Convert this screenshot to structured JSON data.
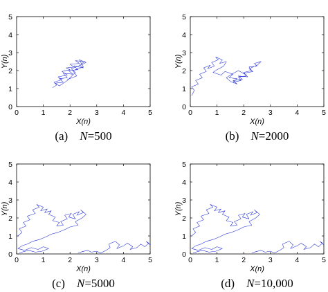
{
  "colors": {
    "walk": "#1f2bd6",
    "axes": "#000000"
  },
  "chart_data": [
    {
      "type": "line",
      "panel_label": "(a)",
      "n_label": "N",
      "n_value": "=500",
      "xlabel": "X(n)",
      "ylabel": "Y(n)",
      "xlim": [
        0,
        5
      ],
      "ylim": [
        0,
        5
      ],
      "xticks": [
        "0",
        "1",
        "2",
        "3",
        "4",
        "5"
      ],
      "yticks": [
        "0",
        "1",
        "2",
        "3",
        "4",
        "5"
      ],
      "grid": false,
      "series": [
        {
          "x": [
            1.35,
            1.5,
            1.4,
            1.7,
            1.55,
            1.9,
            1.7,
            2.0,
            1.85,
            2.15,
            2.0,
            2.35,
            2.2,
            2.55,
            2.35,
            2.5,
            2.15,
            2.3,
            1.95,
            2.1,
            1.75,
            1.9,
            1.6,
            1.75,
            1.45,
            1.6,
            1.9,
            2.2,
            2.05,
            2.4,
            2.6,
            2.35,
            2.5,
            2.1,
            2.25,
            1.9
          ],
          "y": [
            1.05,
            1.2,
            1.35,
            1.5,
            1.65,
            1.75,
            1.95,
            2.05,
            2.15,
            2.2,
            2.35,
            2.4,
            2.55,
            2.5,
            2.3,
            2.15,
            2.25,
            2.05,
            2.0,
            1.8,
            1.85,
            1.6,
            1.55,
            1.35,
            1.3,
            1.15,
            1.45,
            1.9,
            2.1,
            2.3,
            2.45,
            2.6,
            2.2,
            2.0,
            1.7,
            1.5
          ]
        }
      ]
    },
    {
      "type": "line",
      "panel_label": "(b)",
      "n_label": "N",
      "n_value": "=2000",
      "xlabel": "X(n)",
      "ylabel": "Y(n)",
      "xlim": [
        0,
        5
      ],
      "ylim": [
        0,
        5
      ],
      "xticks": [
        "0",
        "1",
        "2",
        "3",
        "4",
        "5"
      ],
      "yticks": [
        "0",
        "1",
        "2",
        "3",
        "4",
        "5"
      ],
      "grid": false,
      "series": [
        {
          "x": [
            0.05,
            0.15,
            0.05,
            0.3,
            0.2,
            0.45,
            0.35,
            0.6,
            0.5,
            0.75,
            0.65,
            0.9,
            0.8,
            1.05,
            0.95,
            1.2,
            1.1,
            1.35,
            1.25,
            1.0,
            0.85,
            1.15,
            1.3,
            1.6,
            1.45,
            1.75,
            1.6,
            1.9,
            1.8,
            2.1,
            2.0,
            2.3,
            2.2,
            2.5,
            2.4,
            2.65,
            2.5,
            2.2,
            2.35,
            2.0,
            2.15,
            1.8,
            1.95,
            1.6,
            1.75,
            1.5,
            1.35,
            1.55,
            1.8,
            2.1
          ],
          "y": [
            0.6,
            0.9,
            1.1,
            1.25,
            1.45,
            1.6,
            1.8,
            1.95,
            2.15,
            2.3,
            2.1,
            2.25,
            2.45,
            2.6,
            2.75,
            2.6,
            2.4,
            2.5,
            2.25,
            2.05,
            1.9,
            1.75,
            1.95,
            1.8,
            1.6,
            1.55,
            1.35,
            1.45,
            1.65,
            1.7,
            1.9,
            2.0,
            2.2,
            2.25,
            2.4,
            2.5,
            2.3,
            2.1,
            1.95,
            1.85,
            1.65,
            1.7,
            1.5,
            1.45,
            1.25,
            1.4,
            1.6,
            1.8,
            2.0,
            1.75
          ]
        }
      ]
    },
    {
      "type": "line",
      "panel_label": "(c)",
      "n_label": "N",
      "n_value": "=5000",
      "xlabel": "X(n)",
      "ylabel": "Y(n)",
      "xlim": [
        0,
        5
      ],
      "ylim": [
        0,
        5
      ],
      "xticks": [
        "0",
        "1",
        "2",
        "3",
        "4",
        "5"
      ],
      "yticks": [
        "0",
        "1",
        "2",
        "3",
        "4",
        "5"
      ],
      "grid": false,
      "series": [
        {
          "x": [
            0.05,
            0.2,
            0.1,
            0.35,
            0.25,
            0.5,
            0.4,
            0.7,
            0.6,
            0.85,
            0.75,
            1.0,
            0.9,
            1.15,
            1.05,
            1.3,
            1.2,
            1.45,
            1.35,
            1.6,
            1.5,
            1.75,
            1.65,
            1.9,
            1.8,
            2.05,
            1.95,
            2.2,
            2.1,
            2.35,
            2.25,
            2.5,
            2.4,
            2.6,
            2.45,
            2.2,
            2.3,
            2.0,
            1.8,
            1.55,
            1.3,
            1.1,
            0.85,
            0.6,
            0.4,
            0.2,
            0.05,
            0.3,
            0.55,
            0.8,
            1.0,
            1.2,
            0.95,
            0.7,
            0.45,
            0.2,
            0.1
          ],
          "y": [
            1.0,
            1.2,
            1.4,
            1.55,
            1.75,
            1.9,
            2.1,
            2.25,
            2.45,
            2.6,
            2.75,
            2.6,
            2.4,
            2.5,
            2.3,
            2.4,
            2.2,
            2.05,
            1.85,
            1.75,
            1.55,
            1.6,
            1.8,
            1.95,
            2.15,
            2.25,
            2.05,
            1.95,
            2.2,
            2.35,
            2.15,
            2.3,
            2.45,
            2.2,
            2.0,
            1.8,
            1.6,
            1.5,
            1.35,
            1.2,
            1.1,
            0.95,
            0.8,
            0.7,
            0.55,
            0.45,
            0.3,
            0.2,
            0.35,
            0.25,
            0.4,
            0.3,
            0.15,
            0.1,
            0.2,
            0.1,
            0.05
          ]
        },
        {
          "x": [
            2.3,
            2.5,
            2.4,
            2.65,
            2.8,
            3.0,
            3.15,
            3.35,
            3.5,
            3.45,
            3.7,
            3.85,
            3.75,
            4.0,
            4.15,
            4.35,
            4.25,
            4.5,
            4.65,
            4.8,
            4.95,
            4.85,
            5.0
          ],
          "y": [
            0.05,
            0.15,
            0.1,
            0.2,
            0.1,
            0.15,
            0.05,
            0.2,
            0.35,
            0.55,
            0.7,
            0.5,
            0.3,
            0.45,
            0.6,
            0.4,
            0.25,
            0.35,
            0.55,
            0.4,
            0.6,
            0.7,
            0.5
          ]
        }
      ]
    },
    {
      "type": "line",
      "panel_label": "(d)",
      "n_label": "N",
      "n_value": "=10,000",
      "xlabel": "X(n)",
      "ylabel": "Y(n)",
      "xlim": [
        0,
        5
      ],
      "ylim": [
        0,
        5
      ],
      "xticks": [
        "0",
        "1",
        "2",
        "3",
        "4",
        "5"
      ],
      "yticks": [
        "0",
        "1",
        "2",
        "3",
        "4",
        "5"
      ],
      "grid": false,
      "series": [
        {
          "x": [
            0.05,
            0.2,
            0.1,
            0.35,
            0.25,
            0.5,
            0.4,
            0.7,
            0.6,
            0.85,
            0.75,
            1.0,
            0.9,
            1.15,
            1.05,
            1.3,
            1.2,
            1.45,
            1.35,
            1.6,
            1.5,
            1.75,
            1.65,
            1.9,
            1.8,
            2.05,
            1.95,
            2.2,
            2.1,
            2.35,
            2.25,
            2.5,
            2.4,
            2.6,
            2.45,
            2.2,
            2.3,
            2.0,
            1.8,
            1.55,
            1.3,
            1.1,
            0.85,
            0.6,
            0.4,
            0.2,
            0.05,
            0.3,
            0.55,
            0.8,
            1.0,
            1.2,
            0.95,
            0.7,
            0.45,
            0.2,
            0.1
          ],
          "y": [
            1.0,
            1.2,
            1.4,
            1.55,
            1.75,
            1.9,
            2.1,
            2.25,
            2.45,
            2.6,
            2.75,
            2.6,
            2.4,
            2.5,
            2.3,
            2.4,
            2.2,
            2.05,
            1.85,
            1.75,
            1.55,
            1.6,
            1.8,
            1.95,
            2.15,
            2.25,
            2.05,
            1.95,
            2.2,
            2.35,
            2.15,
            2.3,
            2.45,
            2.2,
            2.0,
            1.8,
            1.6,
            1.5,
            1.35,
            1.2,
            1.1,
            0.95,
            0.8,
            0.7,
            0.55,
            0.45,
            0.3,
            0.2,
            0.35,
            0.25,
            0.4,
            0.3,
            0.15,
            0.1,
            0.2,
            0.1,
            0.05
          ]
        },
        {
          "x": [
            2.3,
            2.5,
            2.4,
            2.65,
            2.8,
            3.0,
            3.15,
            3.35,
            3.5,
            3.45,
            3.7,
            3.85,
            3.75,
            4.0,
            4.15,
            4.35,
            4.25,
            4.5,
            4.65,
            4.8,
            4.95,
            4.85,
            5.0
          ],
          "y": [
            0.05,
            0.15,
            0.1,
            0.2,
            0.1,
            0.15,
            0.05,
            0.2,
            0.35,
            0.55,
            0.7,
            0.5,
            0.3,
            0.45,
            0.6,
            0.4,
            0.25,
            0.35,
            0.55,
            0.4,
            0.6,
            0.7,
            0.5
          ]
        }
      ]
    }
  ]
}
